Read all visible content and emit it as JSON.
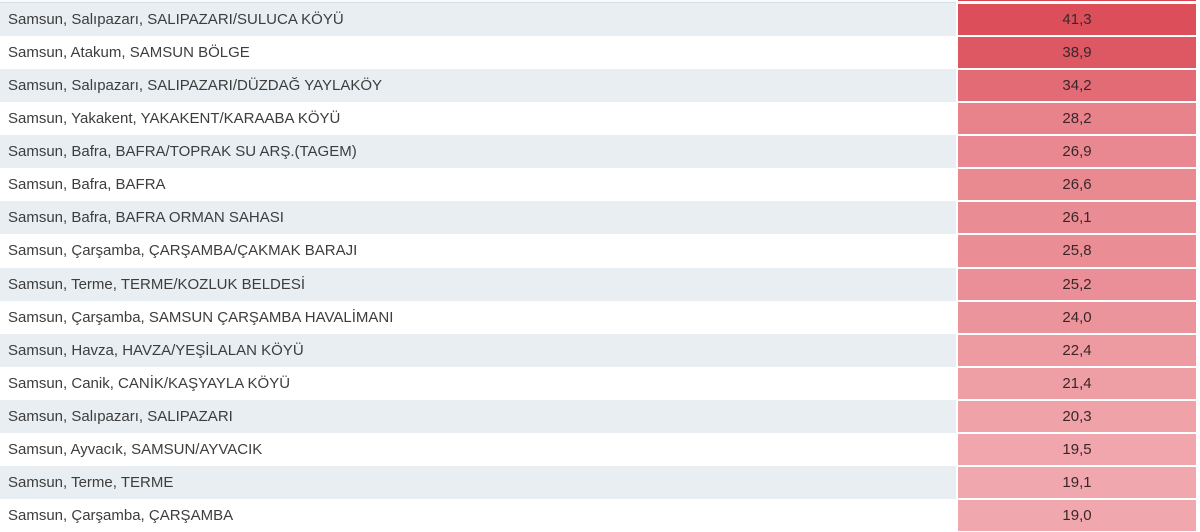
{
  "table": {
    "rows": [
      {
        "location": "Samsun, Salıpazarı, SALIPAZARI/SULUCA KÖYÜ",
        "value": "41,3",
        "color": "#dc4f5a",
        "row_bg": "#e8eef2"
      },
      {
        "location": "Samsun, Atakum, SAMSUN BÖLGE",
        "value": "38,9",
        "color": "#de5863",
        "row_bg": "#ffffff"
      },
      {
        "location": "Samsun, Salıpazarı, SALIPAZARI/DÜZDAĞ YAYLAKÖY",
        "value": "34,2",
        "color": "#e26b75",
        "row_bg": "#e8eef2"
      },
      {
        "location": "Samsun, Yakakent, YAKAKENT/KARAABA KÖYÜ",
        "value": "28,2",
        "color": "#e8838b",
        "row_bg": "#ffffff"
      },
      {
        "location": "Samsun, Bafra, BAFRA/TOPRAK SU ARŞ.(TAGEM)",
        "value": "26,9",
        "color": "#e98890",
        "row_bg": "#e8eef2"
      },
      {
        "location": "Samsun, Bafra, BAFRA",
        "value": "26,6",
        "color": "#e98a91",
        "row_bg": "#ffffff"
      },
      {
        "location": "Samsun, Bafra, BAFRA ORMAN SAHASI",
        "value": "26,1",
        "color": "#ea8c93",
        "row_bg": "#e8eef2"
      },
      {
        "location": "Samsun, Çarşamba, ÇARŞAMBA/ÇAKMAK BARAJI",
        "value": "25,8",
        "color": "#ea8d94",
        "row_bg": "#ffffff"
      },
      {
        "location": "Samsun, Terme, TERME/KOZLUK BELDESİ",
        "value": "25,2",
        "color": "#ea8f97",
        "row_bg": "#e8eef2"
      },
      {
        "location": "Samsun, Çarşamba, SAMSUN ÇARŞAMBA HAVALİMANI",
        "value": "24,0",
        "color": "#ec949b",
        "row_bg": "#ffffff"
      },
      {
        "location": "Samsun, Havza, HAVZA/YEŞİLALAN KÖYÜ",
        "value": "22,4",
        "color": "#ed9aa1",
        "row_bg": "#e8eef2"
      },
      {
        "location": "Samsun, Canik, CANİK/KAŞYAYLA KÖYÜ",
        "value": "21,4",
        "color": "#ee9ea5",
        "row_bg": "#ffffff"
      },
      {
        "location": "Samsun, Salıpazarı, SALIPAZARI",
        "value": "20,3",
        "color": "#efa3a9",
        "row_bg": "#e8eef2"
      },
      {
        "location": "Samsun, Ayvacık, SAMSUN/AYVACIK",
        "value": "19,5",
        "color": "#f0a6ac",
        "row_bg": "#ffffff"
      },
      {
        "location": "Samsun, Terme, TERME",
        "value": "19,1",
        "color": "#f0a8ae",
        "row_bg": "#e8eef2"
      },
      {
        "location": "Samsun, Çarşamba, ÇARŞAMBA",
        "value": "19,0",
        "color": "#f0a8ae",
        "row_bg": "#ffffff"
      }
    ]
  },
  "chart_data": {
    "type": "table",
    "categories": [
      "Samsun, Salıpazarı, SALIPAZARI/SULUCA KÖYÜ",
      "Samsun, Atakum, SAMSUN BÖLGE",
      "Samsun, Salıpazarı, SALIPAZARI/DÜZDAĞ YAYLAKÖY",
      "Samsun, Yakakent, YAKAKENT/KARAABA KÖYÜ",
      "Samsun, Bafra, BAFRA/TOPRAK SU ARŞ.(TAGEM)",
      "Samsun, Bafra, BAFRA",
      "Samsun, Bafra, BAFRA ORMAN SAHASI",
      "Samsun, Çarşamba, ÇARŞAMBA/ÇAKMAK BARAJI",
      "Samsun, Terme, TERME/KOZLUK BELDESİ",
      "Samsun, Çarşamba, SAMSUN ÇARŞAMBA HAVALİMANI",
      "Samsun, Havza, HAVZA/YEŞİLALAN KÖYÜ",
      "Samsun, Canik, CANİK/KAŞYAYLA KÖYÜ",
      "Samsun, Salıpazarı, SALIPAZARI",
      "Samsun, Ayvacık, SAMSUN/AYVACIK",
      "Samsun, Terme, TERME",
      "Samsun, Çarşamba, ÇARŞAMBA"
    ],
    "values": [
      41.3,
      38.9,
      34.2,
      28.2,
      26.9,
      26.6,
      26.1,
      25.8,
      25.2,
      24.0,
      22.4,
      21.4,
      20.3,
      19.5,
      19.1,
      19.0
    ],
    "value_labels": [
      "41,3",
      "38,9",
      "34,2",
      "28,2",
      "26,9",
      "26,6",
      "26,1",
      "25,8",
      "25,2",
      "24,0",
      "22,4",
      "21,4",
      "20,3",
      "19,5",
      "19,1",
      "19,0"
    ],
    "title": "",
    "xlabel": "",
    "ylabel": "",
    "color_scale": {
      "max_value_color": "#dc4f5a",
      "min_value_color": "#f0a8ae"
    },
    "legend": false,
    "grid": false
  }
}
